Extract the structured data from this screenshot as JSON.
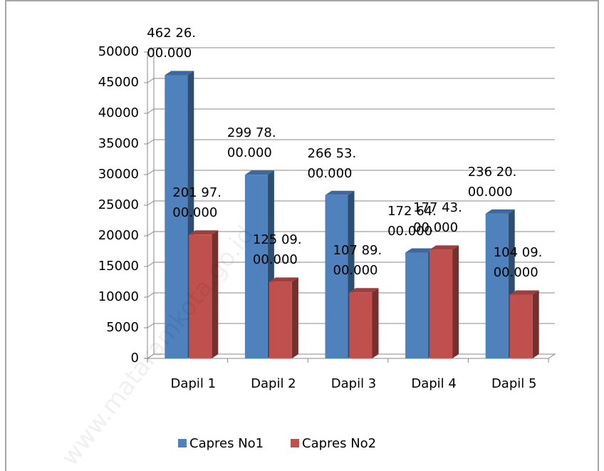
{
  "chart_data": {
    "type": "bar3d",
    "categories": [
      "Dapil 1",
      "Dapil 2",
      "Dapil 3",
      "Dapil 4",
      "Dapil 5"
    ],
    "series": [
      {
        "name": "Capres No1",
        "color": "#4f81bd",
        "values": [
          46226,
          29978,
          26653,
          17264,
          23620
        ],
        "value_labels": [
          "462 26. 00.000",
          "299 78. 00.000",
          "266 53. 00.000",
          "172 64. 00.000",
          "236 20. 00.000"
        ]
      },
      {
        "name": "Capres No2",
        "color": "#c0504d",
        "values": [
          20197,
          12509,
          10789,
          17743,
          10409
        ],
        "value_labels": [
          "201 97. 00.000",
          "125 09. 00.000",
          "107 89. 00.000",
          "177 43. 00.000",
          "104 09. 00.000"
        ]
      }
    ],
    "ylim": [
      0,
      50000
    ],
    "yticks": [
      0,
      5000,
      10000,
      15000,
      20000,
      25000,
      30000,
      35000,
      40000,
      45000,
      50000
    ],
    "grid": true,
    "legend": "bottom",
    "watermark": "www.mataramkota.go.id"
  }
}
